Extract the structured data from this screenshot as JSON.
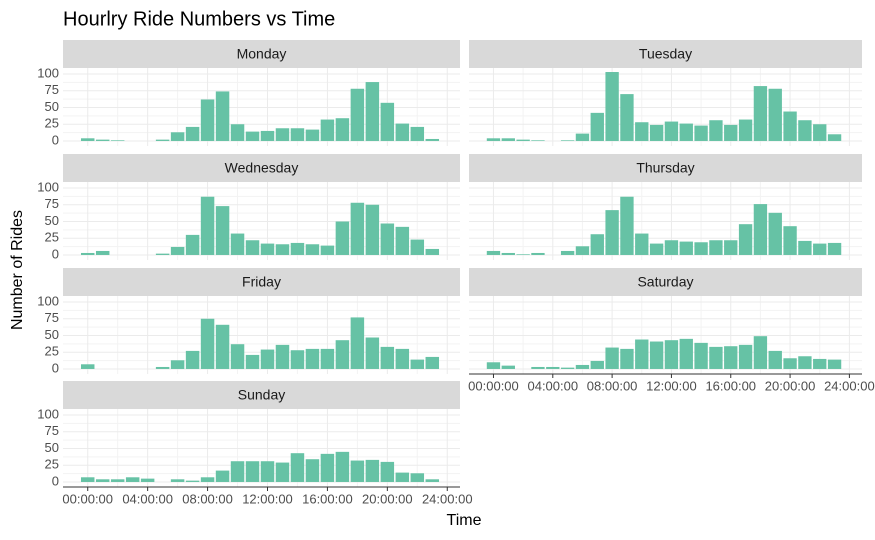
{
  "title": "Hourlry Ride Numbers vs Time",
  "x_label": "Time",
  "y_label": "Number of Rides",
  "xlim": [
    -1.65,
    24.85
  ],
  "xticks": [
    {
      "value": 0,
      "label": "00:00:00"
    },
    {
      "value": 4,
      "label": "04:00:00"
    },
    {
      "value": 8,
      "label": "08:00:00"
    },
    {
      "value": 12,
      "label": "12:00:00"
    },
    {
      "value": 16,
      "label": "16:00:00"
    },
    {
      "value": 20,
      "label": "20:00:00"
    },
    {
      "value": 24,
      "label": "24:00:00"
    }
  ],
  "ylim": [
    -7.5,
    109
  ],
  "yticks": [
    0,
    25,
    50,
    75,
    100
  ],
  "grid": true,
  "color": "#66c2a5",
  "chart_data": [
    {
      "type": "bar",
      "title": "Monday",
      "x": [
        0,
        1,
        2,
        3,
        4,
        5,
        6,
        7,
        8,
        9,
        10,
        11,
        12,
        13,
        14,
        15,
        16,
        17,
        18,
        19,
        20,
        21,
        22,
        23
      ],
      "values": [
        4,
        2,
        1,
        0,
        0,
        2,
        13,
        21,
        62,
        74,
        25,
        14,
        15,
        19,
        19,
        17,
        32,
        34,
        78,
        88,
        57,
        26,
        21,
        3
      ]
    },
    {
      "type": "bar",
      "title": "Tuesday",
      "x": [
        0,
        1,
        2,
        3,
        4,
        5,
        6,
        7,
        8,
        9,
        10,
        11,
        12,
        13,
        14,
        15,
        16,
        17,
        18,
        19,
        20,
        21,
        22,
        23
      ],
      "values": [
        4,
        4,
        2,
        1,
        0,
        1,
        11,
        42,
        103,
        70,
        28,
        24,
        29,
        26,
        23,
        31,
        24,
        32,
        82,
        78,
        44,
        31,
        25,
        10
      ]
    },
    {
      "type": "bar",
      "title": "Wednesday",
      "x": [
        0,
        1,
        2,
        3,
        4,
        5,
        6,
        7,
        8,
        9,
        10,
        11,
        12,
        13,
        14,
        15,
        16,
        17,
        18,
        19,
        20,
        21,
        22,
        23
      ],
      "values": [
        3,
        6,
        0,
        0,
        0,
        2,
        12,
        30,
        87,
        73,
        32,
        22,
        17,
        16,
        18,
        16,
        14,
        50,
        78,
        75,
        47,
        42,
        23,
        9
      ]
    },
    {
      "type": "bar",
      "title": "Thursday",
      "x": [
        0,
        1,
        2,
        3,
        4,
        5,
        6,
        7,
        8,
        9,
        10,
        11,
        12,
        13,
        14,
        15,
        16,
        17,
        18,
        19,
        20,
        21,
        22,
        23
      ],
      "values": [
        6,
        3,
        1,
        3,
        0,
        6,
        13,
        31,
        67,
        87,
        32,
        17,
        22,
        20,
        19,
        22,
        22,
        46,
        76,
        63,
        43,
        21,
        17,
        18
      ]
    },
    {
      "type": "bar",
      "title": "Friday",
      "x": [
        0,
        1,
        2,
        3,
        4,
        5,
        6,
        7,
        8,
        9,
        10,
        11,
        12,
        13,
        14,
        15,
        16,
        17,
        18,
        19,
        20,
        21,
        22,
        23
      ],
      "values": [
        7,
        0,
        0,
        0,
        0,
        3,
        13,
        27,
        75,
        66,
        37,
        21,
        29,
        36,
        28,
        30,
        30,
        43,
        77,
        47,
        33,
        30,
        14,
        18
      ]
    },
    {
      "type": "bar",
      "title": "Saturday",
      "x": [
        0,
        1,
        2,
        3,
        4,
        5,
        6,
        7,
        8,
        9,
        10,
        11,
        12,
        13,
        14,
        15,
        16,
        17,
        18,
        19,
        20,
        21,
        22,
        23
      ],
      "values": [
        10,
        5,
        0,
        3,
        3,
        2,
        6,
        12,
        32,
        30,
        44,
        41,
        43,
        45,
        39,
        33,
        34,
        36,
        49,
        27,
        16,
        19,
        15,
        14
      ]
    },
    {
      "type": "bar",
      "title": "Sunday",
      "x": [
        0,
        1,
        2,
        3,
        4,
        5,
        6,
        7,
        8,
        9,
        10,
        11,
        12,
        13,
        14,
        15,
        16,
        17,
        18,
        19,
        20,
        21,
        22,
        23
      ],
      "values": [
        7,
        4,
        4,
        7,
        5,
        0,
        4,
        2,
        7,
        17,
        31,
        31,
        31,
        29,
        43,
        34,
        42,
        45,
        32,
        33,
        30,
        14,
        13,
        4
      ]
    }
  ]
}
